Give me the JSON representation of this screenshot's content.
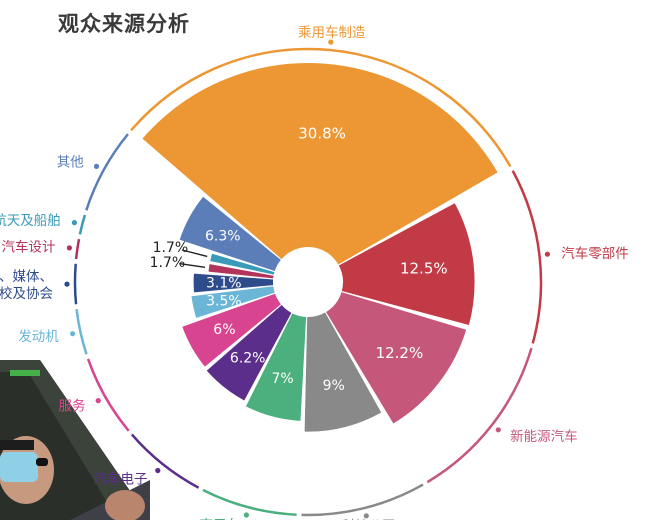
{
  "title": "观众来源分析",
  "chart_data": {
    "type": "pie",
    "variant": "exploded-radial-pie",
    "title": "观众来源分析",
    "slices": [
      {
        "label": "乘用车制造",
        "value": 30.8,
        "display": "30.8%",
        "color": "#EC9733"
      },
      {
        "label": "汽车零部件",
        "value": 12.5,
        "display": "12.5%",
        "color": "#C23A45"
      },
      {
        "label": "新能源汽车",
        "value": 12.2,
        "display": "12.2%",
        "color": "#C5587A"
      },
      {
        "label": "科技公司",
        "value": 9,
        "display": "9%",
        "color": "#898989"
      },
      {
        "label": "商用车",
        "value": 7,
        "display": "7%",
        "color": "#4BAF7E"
      },
      {
        "label": "汽车电子",
        "value": 6.2,
        "display": "6.2%",
        "color": "#5A2E8A"
      },
      {
        "label": "服务",
        "value": 6,
        "display": "6%",
        "color": "#D84490"
      },
      {
        "label": "发动机",
        "value": 3.5,
        "display": "3.5%",
        "color": "#6BB5D7"
      },
      {
        "label": "政府、媒体、院校及协会",
        "value": 3.1,
        "display": "3.1%",
        "color": "#2E4B8C"
      },
      {
        "label": "汽车设计",
        "value": 1.7,
        "display": "1.7%",
        "color": "#B2345A"
      },
      {
        "label": "航空航天及船舶",
        "value": 1.7,
        "display": "1.7%",
        "color": "#3A9BB8"
      },
      {
        "label": "其他",
        "value": 6.3,
        "display": "6.3%",
        "color": "#5B7DB8"
      }
    ]
  }
}
